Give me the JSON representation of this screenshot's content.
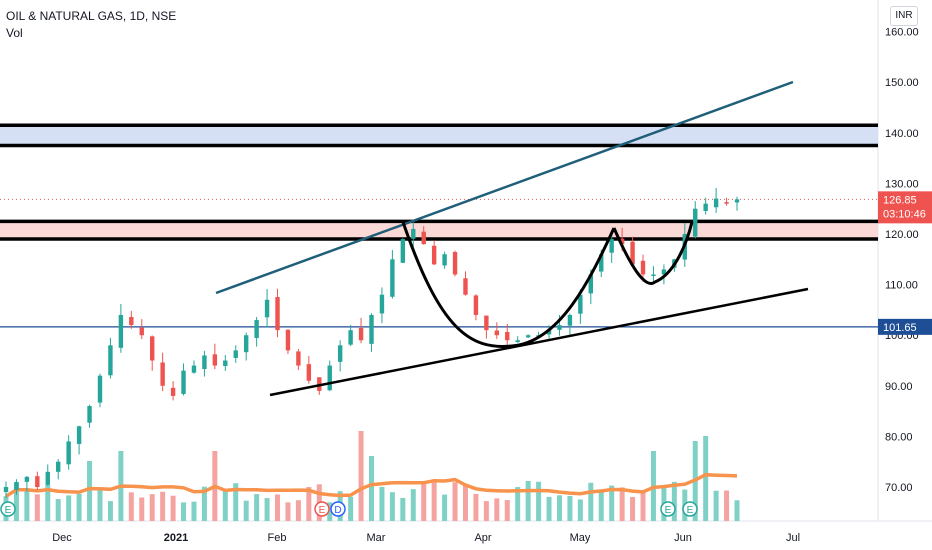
{
  "header": {
    "symbol": "OIL & NATURAL GAS, 1D, NSE",
    "volume_label": "Vol",
    "currency": "INR"
  },
  "colors": {
    "up": "#26a69a",
    "down": "#ef5350",
    "vol_up": "#7fd1c6",
    "vol_down": "#f4a3a0",
    "vol_ma": "#f7934c",
    "trend": "#1f5f7a",
    "level": "#1e4e96",
    "zone_top": "#d6e0f5",
    "zone_mid": "#fbd9d6",
    "line_black": "#000000"
  },
  "chart_data": {
    "type": "candlestick",
    "title": "OIL & NATURAL GAS, 1D, NSE",
    "y_axis": {
      "range": [
        65,
        165
      ],
      "ticks": [
        "70.00",
        "80.00",
        "90.00",
        "100.00",
        "110.00",
        "120.00",
        "130.00",
        "140.00",
        "150.00",
        "160.00"
      ]
    },
    "x_axis": {
      "ticks": [
        "Dec",
        "2021",
        "Feb",
        "Mar",
        "Apr",
        "May",
        "Jun",
        "Jul"
      ]
    },
    "last_price_label": "126.85",
    "countdown_label": "03:10:46",
    "horizontal_level_label": "101.65",
    "horizontal_level": 101.65,
    "zones": [
      {
        "name": "upper-resistance",
        "low": 137.5,
        "high": 141.5
      },
      {
        "name": "middle-resistance",
        "low": 119.0,
        "high": 122.5
      }
    ],
    "event_markers": [
      "E",
      "E",
      "D",
      "E",
      "E"
    ],
    "series": [
      {
        "name": "price",
        "kind": "candles",
        "close_path": [
          70,
          71,
          72,
          70,
          73,
          75,
          79,
          82,
          86,
          92,
          98,
          104,
          102,
          100,
          95,
          90,
          88,
          93,
          94,
          96,
          94,
          95,
          97,
          100,
          103,
          107,
          101,
          97,
          94,
          91,
          89,
          94,
          98,
          101,
          99,
          104,
          108,
          115,
          119,
          121,
          118,
          114,
          116,
          112,
          108,
          104,
          101,
          100,
          99,
          99,
          100,
          100,
          101,
          102,
          104,
          108,
          112,
          116,
          119,
          118,
          114,
          112,
          112,
          113,
          115,
          120,
          125,
          126,
          127,
          126,
          126.85
        ]
      },
      {
        "name": "volume",
        "kind": "bars"
      }
    ]
  }
}
